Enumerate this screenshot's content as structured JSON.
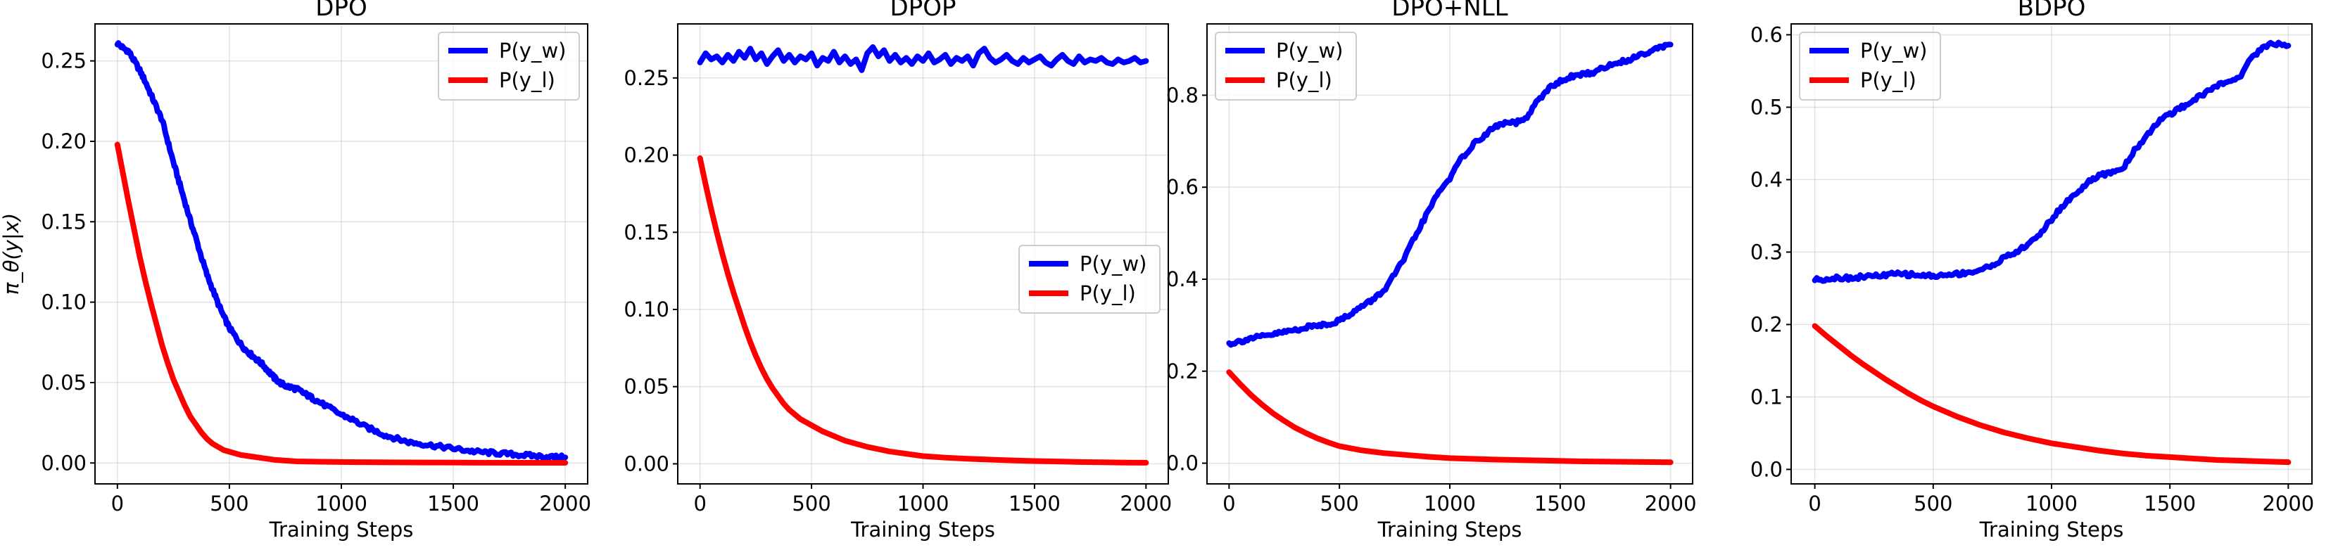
{
  "colors": {
    "w": "#0000ff",
    "l": "#ff0000"
  },
  "chart_data": [
    {
      "type": "line",
      "title": "DPO",
      "xlabel": "Training Steps",
      "ylabel": "π_θ(y|x)",
      "xlim": [
        -100,
        2100
      ],
      "ylim": [
        -0.013,
        0.273
      ],
      "xticks": [
        0,
        500,
        1000,
        1500,
        2000
      ],
      "yticks": [
        0.0,
        0.05,
        0.1,
        0.15,
        0.2,
        0.25
      ],
      "ytick_labels": [
        "0.00",
        "0.05",
        "0.10",
        "0.15",
        "0.20",
        "0.25"
      ],
      "grid": true,
      "legend_position": "top-right",
      "series": [
        {
          "name": "P(y_w)",
          "color_key": "w",
          "noisy": true,
          "x": [
            0,
            25,
            50,
            75,
            100,
            125,
            150,
            175,
            200,
            225,
            250,
            275,
            300,
            325,
            350,
            375,
            400,
            425,
            450,
            475,
            500,
            525,
            550,
            575,
            600,
            625,
            650,
            675,
            700,
            725,
            750,
            775,
            800,
            825,
            850,
            875,
            900,
            950,
            1000,
            1050,
            1100,
            1150,
            1200,
            1250,
            1300,
            1350,
            1400,
            1450,
            1500,
            1550,
            1600,
            1650,
            1700,
            1750,
            1800,
            1850,
            1900,
            1950,
            2000
          ],
          "y": [
            0.261,
            0.258,
            0.256,
            0.25,
            0.244,
            0.237,
            0.229,
            0.221,
            0.213,
            0.2,
            0.187,
            0.175,
            0.163,
            0.151,
            0.14,
            0.128,
            0.117,
            0.108,
            0.099,
            0.091,
            0.084,
            0.079,
            0.074,
            0.07,
            0.067,
            0.064,
            0.061,
            0.057,
            0.053,
            0.05,
            0.048,
            0.047,
            0.046,
            0.044,
            0.042,
            0.04,
            0.038,
            0.034,
            0.03,
            0.027,
            0.023,
            0.02,
            0.017,
            0.015,
            0.013,
            0.012,
            0.011,
            0.01,
            0.009,
            0.008,
            0.007,
            0.0065,
            0.006,
            0.0055,
            0.005,
            0.0045,
            0.004,
            0.0037,
            0.0035
          ]
        },
        {
          "name": "P(y_l)",
          "color_key": "l",
          "noisy": false,
          "x": [
            0,
            25,
            50,
            75,
            100,
            125,
            150,
            175,
            200,
            225,
            250,
            275,
            300,
            325,
            350,
            375,
            400,
            425,
            450,
            475,
            500,
            550,
            600,
            650,
            700,
            750,
            800,
            900,
            1000,
            1100,
            1200,
            1400,
            1600,
            1800,
            2000
          ],
          "y": [
            0.198,
            0.18,
            0.162,
            0.145,
            0.128,
            0.113,
            0.099,
            0.086,
            0.073,
            0.062,
            0.052,
            0.044,
            0.036,
            0.029,
            0.024,
            0.019,
            0.015,
            0.012,
            0.01,
            0.008,
            0.007,
            0.005,
            0.004,
            0.003,
            0.002,
            0.0015,
            0.001,
            0.0008,
            0.0006,
            0.0005,
            0.0004,
            0.0003,
            0.0002,
            0.0001,
            0.0001
          ]
        }
      ]
    },
    {
      "type": "line",
      "title": "DPOP",
      "xlabel": "Training Steps",
      "ylabel": "",
      "xlim": [
        -100,
        2100
      ],
      "ylim": [
        -0.013,
        0.285
      ],
      "xticks": [
        0,
        500,
        1000,
        1500,
        2000
      ],
      "yticks": [
        0.0,
        0.05,
        0.1,
        0.15,
        0.2,
        0.25
      ],
      "ytick_labels": [
        "0.00",
        "0.05",
        "0.10",
        "0.15",
        "0.20",
        "0.25"
      ],
      "grid": true,
      "legend_position": "center-right",
      "series": [
        {
          "name": "P(y_w)",
          "color_key": "w",
          "noisy": false,
          "x": [
            0,
            25,
            50,
            75,
            100,
            125,
            150,
            175,
            200,
            225,
            250,
            275,
            300,
            325,
            350,
            375,
            400,
            425,
            450,
            475,
            500,
            525,
            550,
            575,
            600,
            625,
            650,
            675,
            700,
            725,
            750,
            775,
            800,
            825,
            850,
            875,
            900,
            925,
            950,
            975,
            1000,
            1025,
            1050,
            1075,
            1100,
            1125,
            1150,
            1175,
            1200,
            1225,
            1250,
            1275,
            1300,
            1325,
            1350,
            1375,
            1400,
            1425,
            1450,
            1475,
            1500,
            1525,
            1550,
            1575,
            1600,
            1625,
            1650,
            1675,
            1700,
            1725,
            1750,
            1775,
            1800,
            1825,
            1850,
            1875,
            1900,
            1925,
            1950,
            1975,
            2000
          ],
          "y": [
            0.26,
            0.266,
            0.262,
            0.264,
            0.26,
            0.265,
            0.261,
            0.267,
            0.263,
            0.269,
            0.262,
            0.266,
            0.259,
            0.264,
            0.268,
            0.261,
            0.265,
            0.26,
            0.264,
            0.262,
            0.266,
            0.258,
            0.263,
            0.261,
            0.267,
            0.26,
            0.264,
            0.259,
            0.262,
            0.255,
            0.266,
            0.27,
            0.264,
            0.268,
            0.261,
            0.265,
            0.26,
            0.263,
            0.259,
            0.264,
            0.261,
            0.266,
            0.26,
            0.262,
            0.265,
            0.259,
            0.263,
            0.261,
            0.264,
            0.258,
            0.266,
            0.269,
            0.263,
            0.26,
            0.262,
            0.265,
            0.261,
            0.259,
            0.263,
            0.26,
            0.262,
            0.264,
            0.26,
            0.258,
            0.262,
            0.265,
            0.261,
            0.259,
            0.264,
            0.26,
            0.262,
            0.261,
            0.263,
            0.26,
            0.259,
            0.262,
            0.26,
            0.261,
            0.263,
            0.26,
            0.261
          ]
        },
        {
          "name": "P(y_l)",
          "color_key": "l",
          "noisy": false,
          "x": [
            0,
            25,
            50,
            75,
            100,
            125,
            150,
            175,
            200,
            225,
            250,
            275,
            300,
            325,
            350,
            375,
            400,
            450,
            500,
            550,
            600,
            650,
            700,
            750,
            800,
            850,
            900,
            950,
            1000,
            1100,
            1200,
            1300,
            1400,
            1500,
            1600,
            1700,
            1800,
            1900,
            2000
          ],
          "y": [
            0.198,
            0.181,
            0.165,
            0.15,
            0.136,
            0.123,
            0.111,
            0.1,
            0.089,
            0.079,
            0.07,
            0.062,
            0.055,
            0.049,
            0.044,
            0.039,
            0.035,
            0.029,
            0.025,
            0.021,
            0.018,
            0.015,
            0.013,
            0.011,
            0.0095,
            0.008,
            0.007,
            0.006,
            0.005,
            0.004,
            0.0033,
            0.0027,
            0.0022,
            0.0018,
            0.0015,
            0.0012,
            0.001,
            0.0008,
            0.0007
          ]
        }
      ]
    },
    {
      "type": "line",
      "title": "DPO+NLL",
      "xlabel": "Training Steps",
      "ylabel": "",
      "xlim": [
        -100,
        2100
      ],
      "ylim": [
        -0.045,
        0.955
      ],
      "xticks": [
        0,
        500,
        1000,
        1500,
        2000
      ],
      "yticks": [
        0.0,
        0.2,
        0.4,
        0.6,
        0.8
      ],
      "ytick_labels": [
        "0.0",
        "0.2",
        "0.4",
        "0.6",
        "0.8"
      ],
      "grid": true,
      "legend_position": "top-left",
      "series": [
        {
          "name": "P(y_w)",
          "color_key": "w",
          "noisy": true,
          "x": [
            0,
            50,
            100,
            150,
            200,
            250,
            300,
            350,
            400,
            450,
            500,
            550,
            600,
            650,
            700,
            750,
            800,
            850,
            900,
            950,
            1000,
            1050,
            1100,
            1150,
            1200,
            1250,
            1300,
            1350,
            1400,
            1450,
            1500,
            1550,
            1600,
            1650,
            1700,
            1750,
            1800,
            1850,
            1900,
            1950,
            2000
          ],
          "y": [
            0.26,
            0.265,
            0.272,
            0.275,
            0.28,
            0.285,
            0.29,
            0.295,
            0.3,
            0.303,
            0.31,
            0.325,
            0.34,
            0.355,
            0.375,
            0.41,
            0.45,
            0.5,
            0.545,
            0.59,
            0.62,
            0.66,
            0.69,
            0.71,
            0.73,
            0.74,
            0.74,
            0.75,
            0.79,
            0.815,
            0.83,
            0.84,
            0.845,
            0.85,
            0.86,
            0.87,
            0.875,
            0.885,
            0.895,
            0.905,
            0.91
          ]
        },
        {
          "name": "P(y_l)",
          "color_key": "l",
          "noisy": false,
          "x": [
            0,
            25,
            50,
            75,
            100,
            150,
            200,
            250,
            300,
            350,
            400,
            450,
            500,
            600,
            700,
            800,
            900,
            1000,
            1200,
            1400,
            1600,
            1800,
            2000
          ],
          "y": [
            0.198,
            0.185,
            0.172,
            0.16,
            0.148,
            0.127,
            0.108,
            0.092,
            0.077,
            0.065,
            0.054,
            0.045,
            0.037,
            0.028,
            0.022,
            0.018,
            0.014,
            0.011,
            0.008,
            0.006,
            0.004,
            0.003,
            0.002
          ]
        }
      ]
    },
    {
      "type": "line",
      "title": "BDPO",
      "xlabel": "Training Steps",
      "ylabel": "",
      "xlim": [
        -100,
        2100
      ],
      "ylim": [
        -0.02,
        0.615
      ],
      "xticks": [
        0,
        500,
        1000,
        1500,
        2000
      ],
      "yticks": [
        0.0,
        0.1,
        0.2,
        0.3,
        0.4,
        0.5,
        0.6
      ],
      "ytick_labels": [
        "0.0",
        "0.1",
        "0.2",
        "0.3",
        "0.4",
        "0.5",
        "0.6"
      ],
      "grid": true,
      "legend_position": "top-left",
      "series": [
        {
          "name": "P(y_w)",
          "color_key": "w",
          "noisy": true,
          "x": [
            0,
            50,
            100,
            150,
            200,
            250,
            300,
            350,
            400,
            450,
            500,
            550,
            600,
            650,
            700,
            750,
            800,
            850,
            900,
            950,
            1000,
            1050,
            1100,
            1150,
            1200,
            1250,
            1300,
            1350,
            1400,
            1450,
            1500,
            1550,
            1600,
            1650,
            1700,
            1750,
            1800,
            1850,
            1900,
            1950,
            2000
          ],
          "y": [
            0.262,
            0.263,
            0.265,
            0.264,
            0.266,
            0.267,
            0.268,
            0.27,
            0.269,
            0.268,
            0.267,
            0.268,
            0.27,
            0.272,
            0.275,
            0.282,
            0.292,
            0.3,
            0.31,
            0.325,
            0.345,
            0.365,
            0.38,
            0.395,
            0.405,
            0.41,
            0.415,
            0.44,
            0.46,
            0.48,
            0.49,
            0.5,
            0.51,
            0.52,
            0.53,
            0.535,
            0.545,
            0.57,
            0.585,
            0.588,
            0.585
          ]
        },
        {
          "name": "P(y_l)",
          "color_key": "l",
          "noisy": false,
          "x": [
            0,
            50,
            100,
            150,
            200,
            250,
            300,
            350,
            400,
            450,
            500,
            600,
            700,
            800,
            900,
            1000,
            1100,
            1200,
            1300,
            1400,
            1500,
            1600,
            1700,
            1800,
            1900,
            2000
          ],
          "y": [
            0.198,
            0.184,
            0.171,
            0.158,
            0.146,
            0.135,
            0.124,
            0.114,
            0.104,
            0.095,
            0.087,
            0.073,
            0.061,
            0.051,
            0.043,
            0.036,
            0.031,
            0.026,
            0.022,
            0.019,
            0.017,
            0.015,
            0.013,
            0.012,
            0.011,
            0.01
          ]
        }
      ]
    }
  ]
}
